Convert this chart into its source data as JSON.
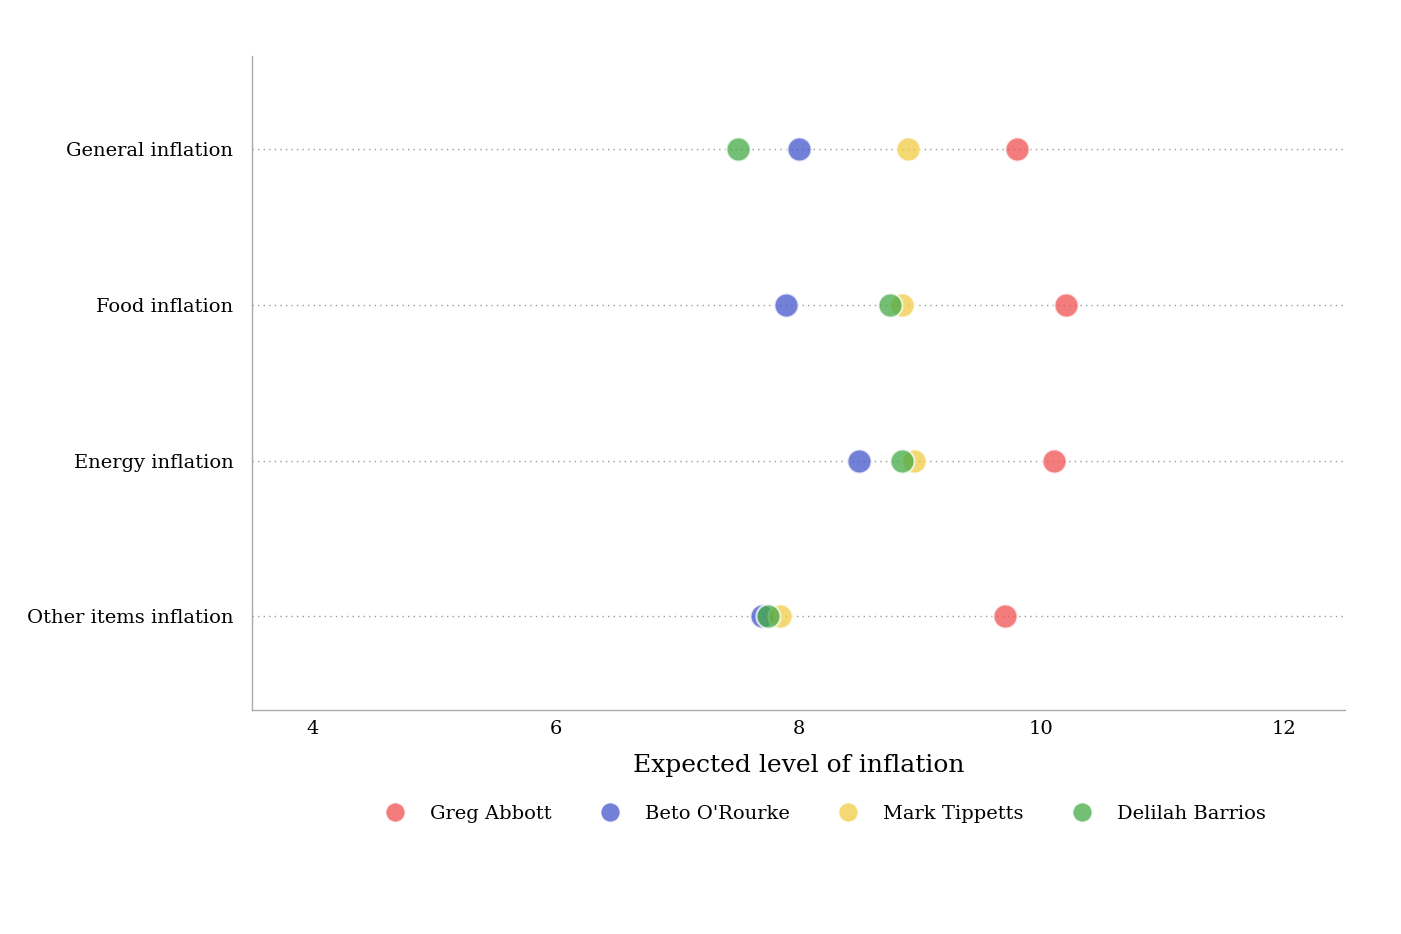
{
  "categories": [
    "General inflation",
    "Food inflation",
    "Energy inflation",
    "Other items inflation"
  ],
  "candidates": [
    "Greg Abbott",
    "Beto O'Rourke",
    "Mark Tippetts",
    "Delilah Barrios"
  ],
  "colors": [
    "#f05050",
    "#4455cc",
    "#f0cc44",
    "#44aa44"
  ],
  "data": {
    "General inflation": [
      9.8,
      8.0,
      8.9,
      7.5
    ],
    "Food inflation": [
      10.2,
      7.9,
      8.85,
      8.75
    ],
    "Energy inflation": [
      10.1,
      8.5,
      8.95,
      8.85
    ],
    "Other items inflation": [
      9.7,
      7.7,
      7.85,
      7.75
    ]
  },
  "xlim": [
    3.5,
    12.5
  ],
  "xticks": [
    4,
    6,
    8,
    10,
    12
  ],
  "xlabel": "Expected level of inflation",
  "background_color": "#ffffff",
  "dot_size": 300,
  "axis_fontsize": 14,
  "xlabel_fontsize": 18,
  "legend_fontsize": 14
}
